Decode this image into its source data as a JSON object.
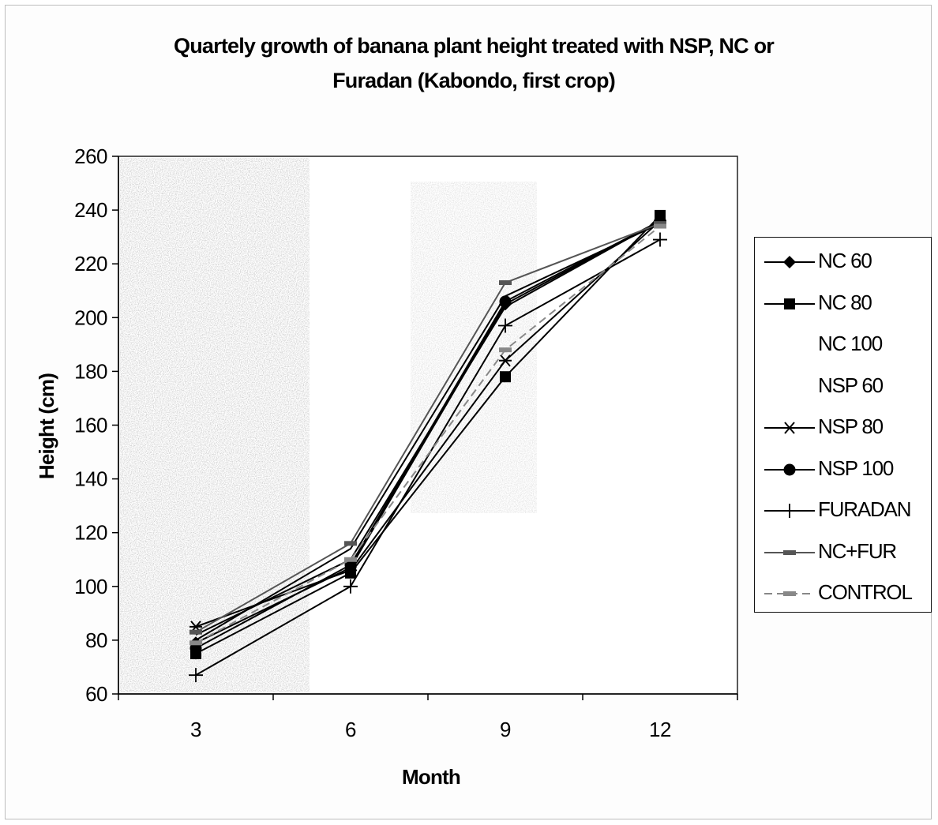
{
  "chart_data": {
    "type": "line",
    "title": "Quartely growth of banana plant height treated with NSP, NC or\nFuradan (Kabondo, first crop)",
    "xlabel": "Month",
    "ylabel": "Height (cm)",
    "x": [
      3,
      6,
      9,
      12
    ],
    "ylim": [
      60,
      260
    ],
    "yticks": [
      60,
      80,
      100,
      120,
      140,
      160,
      180,
      200,
      220,
      240,
      260
    ],
    "grid": false,
    "legend_position": "right",
    "series": [
      {
        "name": "NC 60",
        "values": [
          79,
          107,
          205,
          236
        ],
        "marker": "diamond",
        "color": "#000000",
        "dash": ""
      },
      {
        "name": "NC 80",
        "values": [
          75,
          105,
          178,
          238
        ],
        "marker": "square",
        "color": "#000000",
        "dash": ""
      },
      {
        "name": "NC 100",
        "values": [
          82,
          110,
          204,
          236
        ],
        "marker": "none",
        "color": "#000000",
        "dash": ""
      },
      {
        "name": "NSP 60",
        "values": [
          80,
          114,
          208,
          235
        ],
        "marker": "none",
        "color": "#000000",
        "dash": ""
      },
      {
        "name": "NSP 80",
        "values": [
          85,
          106,
          184,
          236
        ],
        "marker": "star",
        "color": "#000000",
        "dash": ""
      },
      {
        "name": "NSP 100",
        "values": [
          77,
          108,
          206,
          236
        ],
        "marker": "circle",
        "color": "#000000",
        "dash": ""
      },
      {
        "name": "FURADAN",
        "values": [
          67,
          100,
          197,
          229
        ],
        "marker": "plus",
        "color": "#000000",
        "dash": ""
      },
      {
        "name": "NC+FUR",
        "values": [
          83,
          116,
          213,
          235
        ],
        "marker": "bar",
        "color": "#555555",
        "dash": ""
      },
      {
        "name": "CONTROL",
        "values": [
          79,
          110,
          188,
          234
        ],
        "marker": "bar",
        "color": "#888888",
        "dash": "10,6"
      }
    ]
  }
}
